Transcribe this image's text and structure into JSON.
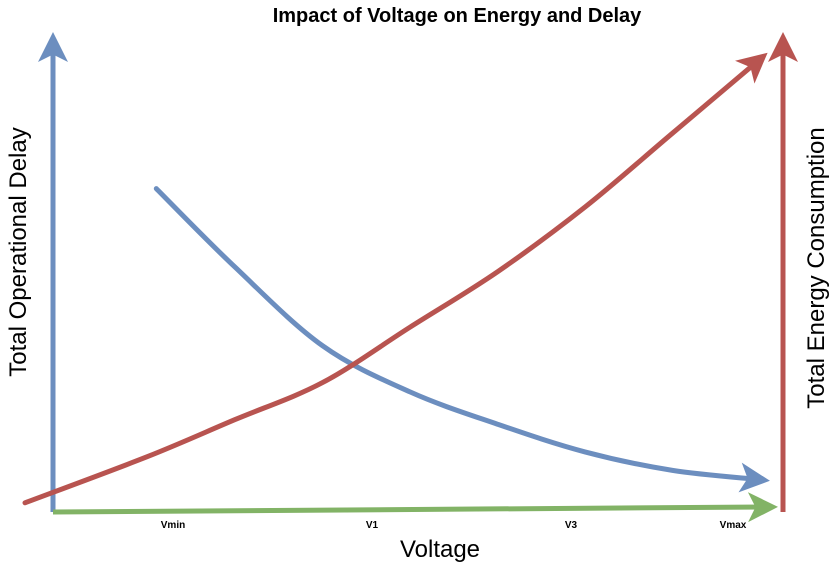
{
  "chart_data": {
    "type": "line",
    "title": "Impact of Voltage on Energy and Delay",
    "xlabel": "Voltage",
    "ylabel_left": "Total Operational Delay",
    "ylabel_right": "Total Energy Consumption",
    "x_ticks": [
      "Vmin",
      "V1",
      "V3",
      "Vmax"
    ],
    "xlim": [
      0,
      4
    ],
    "ylim": [
      0,
      10
    ],
    "grid": false,
    "legend": "none",
    "series": [
      {
        "key": "delay",
        "color": "#6c8ebf",
        "points": [
          [
            0.55,
            7.0
          ],
          [
            1.0,
            5.3
          ],
          [
            1.5,
            3.6
          ],
          [
            2.0,
            2.6
          ],
          [
            2.5,
            1.9
          ],
          [
            3.0,
            1.3
          ],
          [
            3.5,
            0.9
          ],
          [
            4.0,
            0.7
          ]
        ],
        "arrow_end": true
      },
      {
        "key": "energy",
        "color": "#b85450",
        "points": [
          [
            -0.2,
            0.2
          ],
          [
            0.5,
            1.2
          ],
          [
            1.0,
            2.0
          ],
          [
            1.5,
            2.8
          ],
          [
            2.0,
            4.0
          ],
          [
            2.5,
            5.2
          ],
          [
            3.0,
            6.6
          ],
          [
            3.5,
            8.2
          ],
          [
            4.0,
            9.8
          ]
        ],
        "arrow_end": true
      }
    ],
    "axis_colors": {
      "left_axis": "#6c8ebf",
      "right_axis": "#b85450",
      "x_axis": "#82b366"
    }
  }
}
